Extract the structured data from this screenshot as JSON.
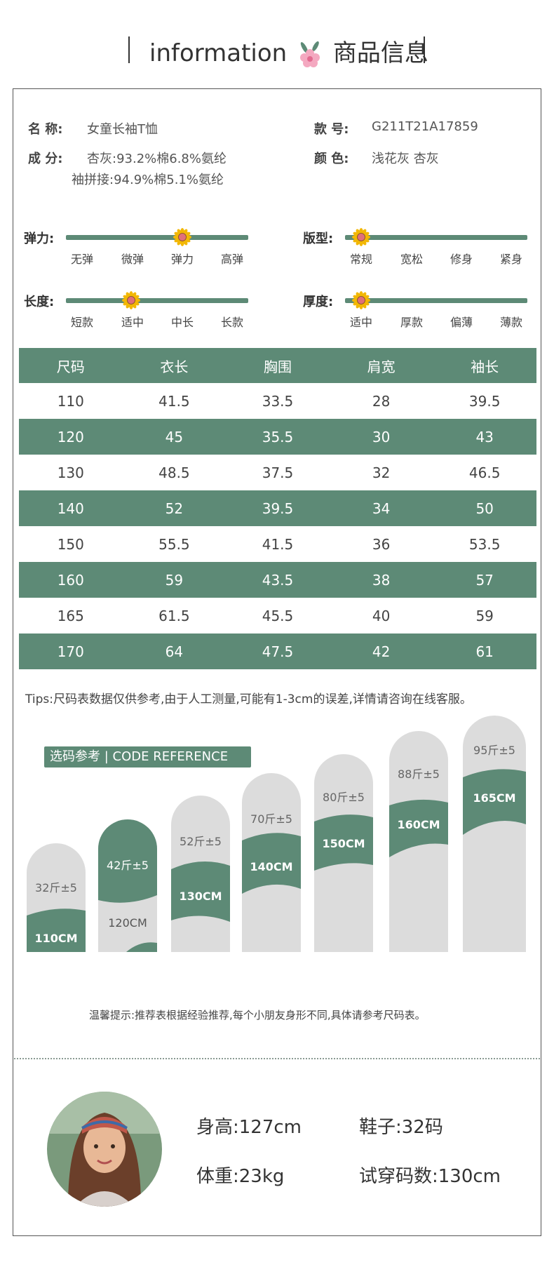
{
  "header": {
    "title_en": "information",
    "title_cn": "商品信息"
  },
  "product": {
    "name_label": "名    称:",
    "name_value": "女童长袖T恤",
    "comp_label": "成    分:",
    "comp_value_1": "杏灰:93.2%棉6.8%氨纶",
    "comp_value_2": "袖拼接:94.9%棉5.1%氨纶",
    "style_label": "款    号:",
    "style_value": "G211T21A17859",
    "color_label": "颜    色:",
    "color_value": "浅花灰 杏灰"
  },
  "attributes": {
    "elasticity": {
      "label": "弹力:",
      "ticks": [
        "无弹",
        "微弹",
        "弹力",
        "高弹"
      ],
      "selected_index": 2
    },
    "fit": {
      "label": "版型:",
      "ticks": [
        "常规",
        "宽松",
        "修身",
        "紧身"
      ],
      "selected_index": 0
    },
    "length": {
      "label": "长度:",
      "ticks": [
        "短款",
        "适中",
        "中长",
        "长款"
      ],
      "selected_index": 1
    },
    "thickness": {
      "label": "厚度:",
      "ticks": [
        "适中",
        "厚款",
        "偏薄",
        "薄款"
      ],
      "selected_index": 0
    }
  },
  "size_table": {
    "headers": [
      "尺码",
      "衣长",
      "胸围",
      "肩宽",
      "袖长"
    ],
    "rows": [
      [
        "110",
        "41.5",
        "33.5",
        "28",
        "39.5"
      ],
      [
        "120",
        "45",
        "35.5",
        "30",
        "43"
      ],
      [
        "130",
        "48.5",
        "37.5",
        "32",
        "46.5"
      ],
      [
        "140",
        "52",
        "39.5",
        "34",
        "50"
      ],
      [
        "150",
        "55.5",
        "41.5",
        "36",
        "53.5"
      ],
      [
        "160",
        "59",
        "43.5",
        "38",
        "57"
      ],
      [
        "165",
        "61.5",
        "45.5",
        "40",
        "59"
      ],
      [
        "170",
        "64",
        "47.5",
        "42",
        "61"
      ]
    ]
  },
  "tips": "Tips:尺码表数据仅供参考,由于人工测量,可能有1-3cm的误差,详情请咨询在线客服。",
  "reference": {
    "tag": "选码参考 | CODE REFERENCE",
    "items": [
      {
        "weight": "32斤±5",
        "height": "110CM"
      },
      {
        "weight": "42斤±5",
        "height": "120CM"
      },
      {
        "weight": "52斤±5",
        "height": "130CM"
      },
      {
        "weight": "70斤±5",
        "height": "140CM"
      },
      {
        "weight": "80斤±5",
        "height": "150CM"
      },
      {
        "weight": "88斤±5",
        "height": "160CM"
      },
      {
        "weight": "95斤±5",
        "height": "165CM"
      }
    ],
    "note": "温馨提示:推荐表根据经验推荐,每个小朋友身形不同,具体请参考尺码表。"
  },
  "model": {
    "height": "身高:127cm",
    "shoes": "鞋子:32码",
    "weight": "体重:23kg",
    "trial_size": "试穿码数:130cm"
  },
  "colors": {
    "accent": "#5d8a76",
    "pill": "#dcdcdc"
  }
}
